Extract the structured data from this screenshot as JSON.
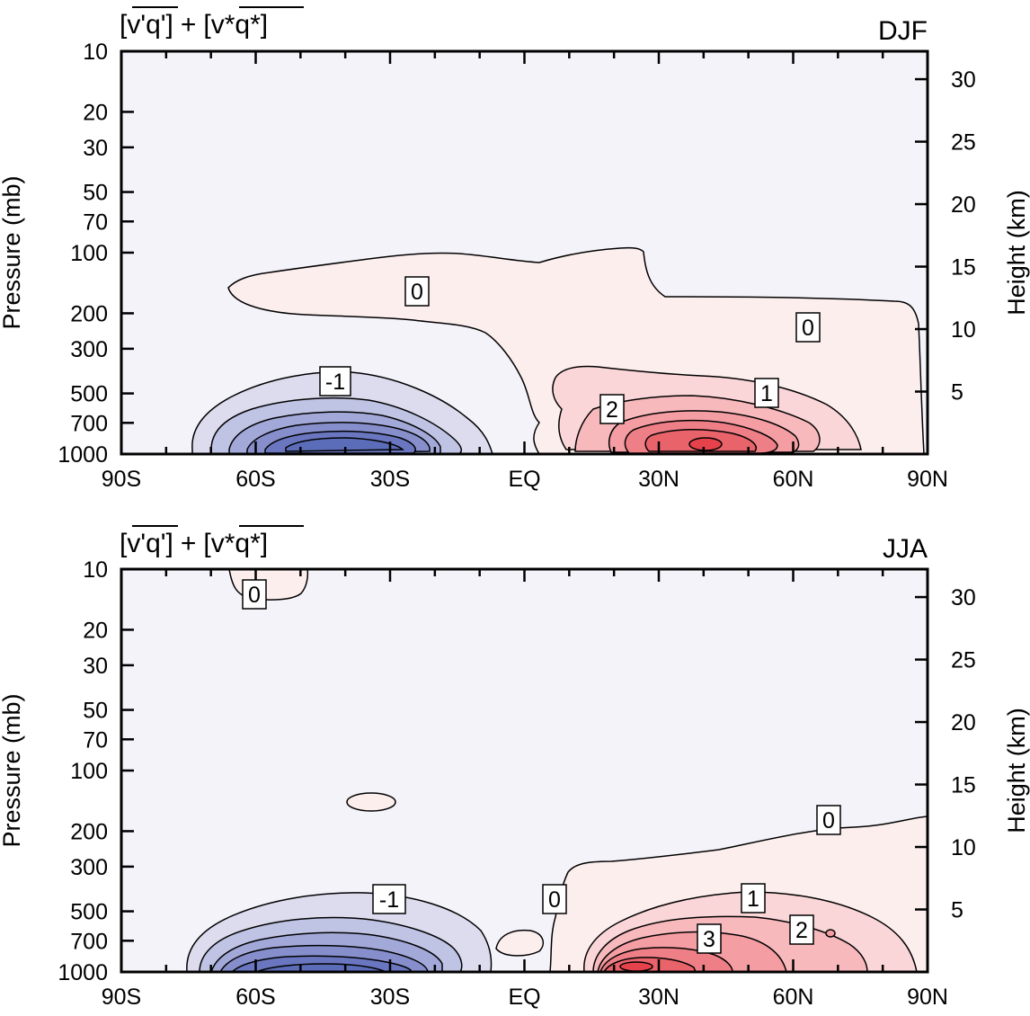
{
  "chart_data": [
    {
      "type": "contour",
      "title": "[v'q'] + [v*q*]",
      "title_parts": {
        "first": "v'q'",
        "second": "v*q*",
        "plus": "+"
      },
      "season": "DJF",
      "ylabel_left": "Pressure (mb)",
      "ylabel_right": "Height (km)",
      "x_tick_labels": [
        "90S",
        "60S",
        "30S",
        "EQ",
        "30N",
        "60N",
        "90N"
      ],
      "x_ticks": [
        -90,
        -60,
        -30,
        0,
        30,
        60,
        90
      ],
      "xlim": [
        -90,
        90
      ],
      "y_scale": "log",
      "y_tick_labels": [
        "10",
        "20",
        "30",
        "50",
        "70",
        "100",
        "200",
        "300",
        "500",
        "700",
        "1000"
      ],
      "y_ticks": [
        10,
        20,
        30,
        50,
        70,
        100,
        200,
        300,
        500,
        700,
        1000
      ],
      "ylim": [
        1000,
        10
      ],
      "right_tick_labels": [
        "5",
        "10",
        "15",
        "20",
        "25",
        "30"
      ],
      "right_ticks": [
        5,
        10,
        15,
        20,
        25,
        30
      ],
      "contour_labels": [
        "0",
        "0",
        "-1",
        "1",
        "2"
      ],
      "features": {
        "zero_line": [
          [
            -75,
            200
          ],
          [
            -65,
            150
          ],
          [
            -45,
            130
          ],
          [
            -25,
            140
          ],
          [
            -5,
            155
          ],
          [
            2,
            135
          ],
          [
            20,
            125
          ],
          [
            25,
            115
          ],
          [
            33,
            120
          ],
          [
            35,
            180
          ],
          [
            40,
            240
          ],
          [
            55,
            240
          ],
          [
            80,
            245
          ],
          [
            85,
            290
          ],
          [
            88,
            500
          ],
          [
            90,
            1000
          ]
        ],
        "zero_line_lower": [
          [
            -75,
            200
          ],
          [
            -67,
            215
          ],
          [
            -45,
            225
          ],
          [
            -30,
            220
          ],
          [
            -18,
            290
          ],
          [
            -12,
            390
          ],
          [
            -6,
            480
          ],
          [
            -3,
            600
          ],
          [
            -5,
            760
          ],
          [
            -2,
            700
          ],
          [
            0,
            750
          ],
          [
            2,
            880
          ],
          [
            7,
            950
          ],
          [
            12,
            1000
          ]
        ],
        "negative_min": {
          "lat": -42,
          "p": 900,
          "value": -7
        },
        "positive_max": {
          "lat": 38,
          "p": 920,
          "value": 8
        }
      },
      "colors": {
        "negative_deep": "#5b6db8",
        "positive_deep": "#e5424b",
        "background": "#f4f3fa",
        "positive_light": "#fdeeee"
      }
    },
    {
      "type": "contour",
      "title": "[v'q'] + [v*q*]",
      "title_parts": {
        "first": "v'q'",
        "second": "v*q*",
        "plus": "+"
      },
      "season": "JJA",
      "ylabel_left": "Pressure (mb)",
      "ylabel_right": "Height (km)",
      "x_tick_labels": [
        "90S",
        "60S",
        "30S",
        "EQ",
        "30N",
        "60N",
        "90N"
      ],
      "x_ticks": [
        -90,
        -60,
        -30,
        0,
        30,
        60,
        90
      ],
      "xlim": [
        -90,
        90
      ],
      "y_scale": "log",
      "y_tick_labels": [
        "10",
        "20",
        "30",
        "50",
        "70",
        "100",
        "200",
        "300",
        "500",
        "700",
        "1000"
      ],
      "y_ticks": [
        10,
        20,
        30,
        50,
        70,
        100,
        200,
        300,
        500,
        700,
        1000
      ],
      "ylim": [
        1000,
        10
      ],
      "right_tick_labels": [
        "5",
        "10",
        "15",
        "20",
        "25",
        "30"
      ],
      "right_ticks": [
        5,
        10,
        15,
        20,
        25,
        30
      ],
      "contour_labels": [
        "0",
        "0",
        "-1",
        "0",
        "1",
        "3",
        "2"
      ],
      "features": {
        "negative_min": {
          "lat": -45,
          "p": 920,
          "value": -8
        },
        "positive_max": {
          "lat": 24,
          "p": 950,
          "value": 12
        }
      },
      "colors": {
        "negative_deep": "#5b6db8",
        "positive_deep": "#e5424b",
        "background": "#f4f3fa",
        "positive_light": "#fdeeee"
      }
    }
  ]
}
